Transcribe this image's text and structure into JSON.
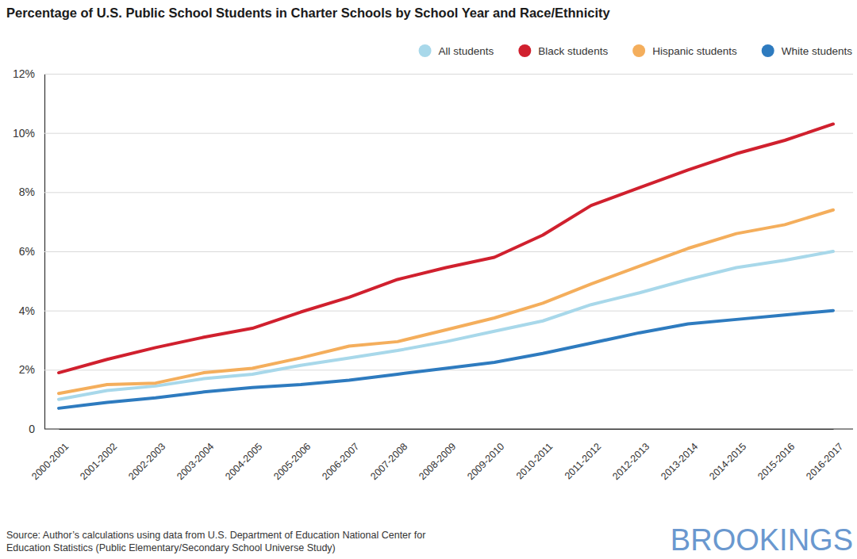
{
  "chart_data": {
    "type": "line",
    "title": "Percentage of U.S. Public School Students in Charter Schools by School Year and Race/Ethnicity",
    "categories": [
      "2000-2001",
      "2001-2002",
      "2002-2003",
      "2003-2004",
      "2004-2005",
      "2005-2006",
      "2006-2007",
      "2007-2008",
      "2008-2009",
      "2009-2010",
      "2010-2011",
      "2011-2012",
      "2012-2013",
      "2013-2014",
      "2014-2015",
      "2015-2016",
      "2016-2017"
    ],
    "series": [
      {
        "name": "All students",
        "color": "#a8d8ea",
        "values": [
          1.0,
          1.3,
          1.45,
          1.7,
          1.85,
          2.15,
          2.4,
          2.65,
          2.95,
          3.3,
          3.65,
          4.2,
          4.6,
          5.05,
          5.45,
          5.7,
          6.0
        ]
      },
      {
        "name": "Black students",
        "color": "#d0202e",
        "values": [
          1.9,
          2.35,
          2.75,
          3.1,
          3.4,
          3.95,
          4.45,
          5.05,
          5.45,
          5.8,
          6.55,
          7.55,
          8.15,
          8.75,
          9.3,
          9.75,
          10.3
        ]
      },
      {
        "name": "Hispanic students",
        "color": "#f4ae5c",
        "values": [
          1.2,
          1.5,
          1.55,
          1.9,
          2.05,
          2.4,
          2.8,
          2.95,
          3.35,
          3.75,
          4.25,
          4.9,
          5.5,
          6.1,
          6.6,
          6.9,
          7.4
        ]
      },
      {
        "name": "White students",
        "color": "#2e7bbf",
        "values": [
          0.7,
          0.9,
          1.05,
          1.25,
          1.4,
          1.5,
          1.65,
          1.85,
          2.05,
          2.25,
          2.55,
          2.9,
          3.25,
          3.55,
          3.7,
          3.85,
          4.0
        ]
      }
    ],
    "ylim": [
      0,
      12
    ],
    "yticks": [
      0,
      {
        "value": 2,
        "label": "2%"
      },
      {
        "value": 4,
        "label": "4%"
      },
      {
        "value": 6,
        "label": "6%"
      },
      {
        "value": 8,
        "label": "8%"
      },
      {
        "value": 10,
        "label": "10%"
      },
      {
        "value": 12,
        "label": "12%"
      }
    ],
    "grid": true,
    "legend": "top-right",
    "source": [
      "Source: Author’s calculations using data from U.S. Department of Education National Center for",
      "Education Statistics (Public Elementary/Secondary School Universe Study)"
    ],
    "logo": "BROOKINGS"
  }
}
